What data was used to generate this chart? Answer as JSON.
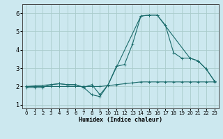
{
  "xlabel": "Humidex (Indice chaleur)",
  "ylabel": "",
  "background_color": "#cce8ef",
  "grid_color": "#aacccc",
  "line_color": "#1a6b6b",
  "xlim": [
    -0.5,
    23.5
  ],
  "ylim": [
    0.8,
    6.5
  ],
  "yticks": [
    1,
    2,
    3,
    4,
    5,
    6
  ],
  "xticks": [
    0,
    1,
    2,
    3,
    4,
    5,
    6,
    7,
    8,
    9,
    10,
    11,
    12,
    13,
    14,
    15,
    16,
    17,
    18,
    19,
    20,
    21,
    22,
    23
  ],
  "series1_x": [
    0,
    1,
    2,
    3,
    4,
    5,
    6,
    7,
    8,
    9,
    10,
    11,
    12,
    13,
    14,
    15,
    16,
    17,
    18,
    19,
    20,
    21,
    22,
    23
  ],
  "series1_y": [
    1.95,
    1.95,
    1.95,
    2.1,
    2.15,
    2.1,
    2.1,
    1.95,
    2.1,
    1.55,
    2.1,
    3.1,
    3.2,
    4.35,
    5.85,
    5.9,
    5.9,
    5.35,
    3.85,
    3.55,
    3.55,
    3.4,
    2.95,
    2.3
  ],
  "series2_x": [
    0,
    1,
    2,
    3,
    4,
    5,
    6,
    7,
    8,
    9,
    10,
    11,
    12,
    13,
    14,
    15,
    16,
    17,
    18,
    19,
    20,
    21,
    22,
    23
  ],
  "series2_y": [
    2.0,
    2.0,
    2.0,
    2.0,
    2.0,
    2.0,
    2.0,
    2.0,
    2.0,
    2.0,
    2.05,
    2.1,
    2.15,
    2.2,
    2.25,
    2.25,
    2.25,
    2.25,
    2.25,
    2.25,
    2.25,
    2.25,
    2.25,
    2.25
  ],
  "series3_x": [
    0,
    3,
    4,
    5,
    6,
    7,
    8,
    9,
    10,
    14,
    15,
    16,
    20,
    21,
    22,
    23
  ],
  "series3_y": [
    2.0,
    2.1,
    2.15,
    2.1,
    2.1,
    1.95,
    1.55,
    1.45,
    2.1,
    5.85,
    5.9,
    5.9,
    3.55,
    3.4,
    2.95,
    2.3
  ]
}
